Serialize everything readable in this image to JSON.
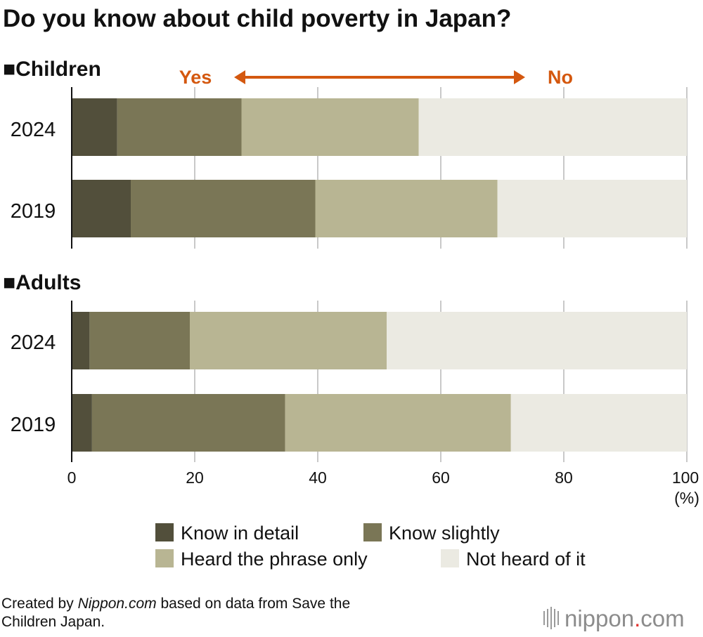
{
  "chart_data": {
    "type": "bar",
    "orientation": "horizontal",
    "stacked": true,
    "title": "Do you know about child poverty in Japan?",
    "xlabel": "(%)",
    "xlim": [
      0,
      100
    ],
    "xticks": [
      "0",
      "20",
      "40",
      "60",
      "80",
      "100"
    ],
    "grid": true,
    "groups": [
      {
        "name": "■Children",
        "categories": [
          "2024",
          "2019"
        ],
        "series": [
          {
            "name": "Know in detail",
            "values": [
              7.4,
              9.6
            ]
          },
          {
            "name": "Know slightly",
            "values": [
              20.2,
              30.0
            ]
          },
          {
            "name": "Heard the phrase only",
            "values": [
              28.8,
              29.6
            ]
          },
          {
            "name": "Not heard of it",
            "values": [
              43.6,
              30.8
            ]
          }
        ]
      },
      {
        "name": "■Adults",
        "categories": [
          "2024",
          "2019"
        ],
        "series": [
          {
            "name": "Know in detail",
            "values": [
              2.9,
              3.3
            ]
          },
          {
            "name": "Know slightly",
            "values": [
              16.3,
              31.4
            ]
          },
          {
            "name": "Heard the phrase only",
            "values": [
              32.0,
              36.7
            ]
          },
          {
            "name": "Not heard of it",
            "values": [
              48.8,
              28.6
            ]
          }
        ]
      }
    ],
    "colors": [
      "#524f3b",
      "#7a7656",
      "#b8b593",
      "#ebeae2"
    ],
    "legend": [
      "Know in detail",
      "Know slightly",
      "Heard the phrase only",
      "Not heard of it"
    ],
    "annotation": {
      "left": "Yes",
      "right": "No",
      "color": "#d4580f"
    }
  },
  "footer": {
    "credit_prefix": "Created by ",
    "credit_site": "Nippon.com",
    "credit_suffix_line1": " based on data from Save the",
    "credit_line2": "Children Japan.",
    "logo_text": "nippon",
    "logo_dot": ".",
    "logo_com": "com",
    "logo_dot_color": "#e3342f"
  }
}
